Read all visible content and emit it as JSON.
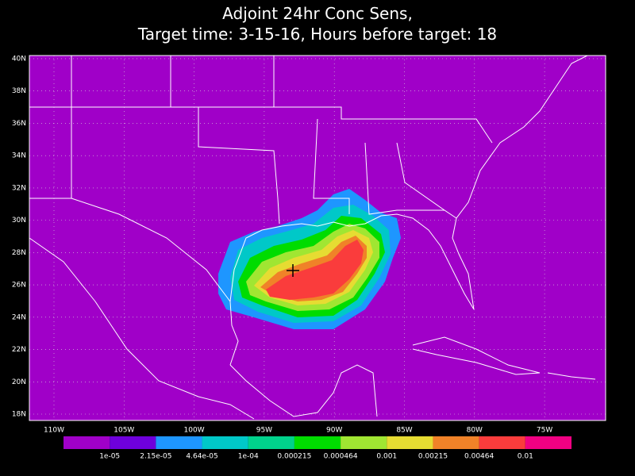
{
  "title": [
    "Adjoint 24hr Conc Sens,",
    "Target time: 3-15-16, Hours before target: 18"
  ],
  "map": {
    "background": "#a000c8",
    "lon_labels": [
      "110W",
      "105W",
      "100W",
      "95W",
      "90W",
      "85W",
      "80W",
      "75W"
    ],
    "lat_labels": [
      "18N",
      "20N",
      "22N",
      "24N",
      "26N",
      "28N",
      "30N",
      "32N",
      "34N",
      "36N",
      "38N",
      "40N"
    ]
  },
  "colorbar": {
    "colors": [
      "#a000c8",
      "#6e00dc",
      "#1e96ff",
      "#00c8c8",
      "#00d28c",
      "#00dc00",
      "#a0e632",
      "#e6dc32",
      "#f08228",
      "#fa3c3c",
      "#f00082"
    ],
    "labels": [
      "1e-05",
      "2.15e-05",
      "4.64e-05",
      "1e-04",
      "0.000215",
      "0.000464",
      "0.001",
      "0.00215",
      "0.00464",
      "0.01"
    ]
  }
}
